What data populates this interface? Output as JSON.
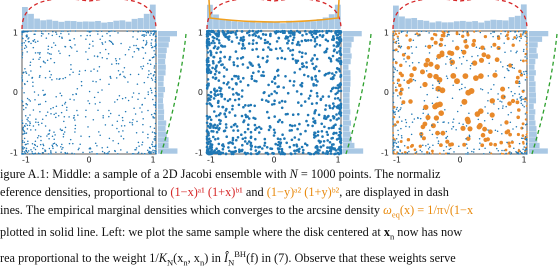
{
  "panels": [
    {
      "xticks": [
        "-1",
        "0",
        "1"
      ],
      "yticks": [
        "1",
        "0",
        "-1"
      ]
    },
    {
      "xticks": [
        "-1",
        "0",
        "1"
      ],
      "yticks": [
        "1",
        "0",
        "-1"
      ]
    },
    {
      "xticks": [
        "-1",
        "0",
        "1"
      ],
      "yticks": [
        "1",
        "0",
        "-1"
      ]
    }
  ],
  "caption": {
    "lines": [
      [
        "igure A.1: Middle: a sample of a 2D Jacobi ensemble with ",
        "N",
        " = 1000 points. The normaliz"
      ],
      [
        "eference densities, proportional to ",
        "(1−x)ᵃ¹ (1+x)ᵇ¹",
        " and ",
        "(1−y)ᵃ² (1+y)ᵇ²",
        ", are displayed in dash"
      ],
      [
        "ines. The empirical marginal densities which converges to the arcsine density ",
        "ω",
        "eq",
        "(x) = 1/π√(1−x"
      ],
      [
        "plotted in solid line. Left: we plot the same sample where the disk centered at ",
        "x",
        "n",
        " now has now"
      ],
      [
        "rea proportional to the weight 1/",
        "K",
        "N",
        "(x",
        "n",
        ", x",
        "n",
        ") in ",
        "Î",
        "N",
        "BH",
        "(f) in (7). Observe that these weights serve"
      ]
    ]
  }
}
